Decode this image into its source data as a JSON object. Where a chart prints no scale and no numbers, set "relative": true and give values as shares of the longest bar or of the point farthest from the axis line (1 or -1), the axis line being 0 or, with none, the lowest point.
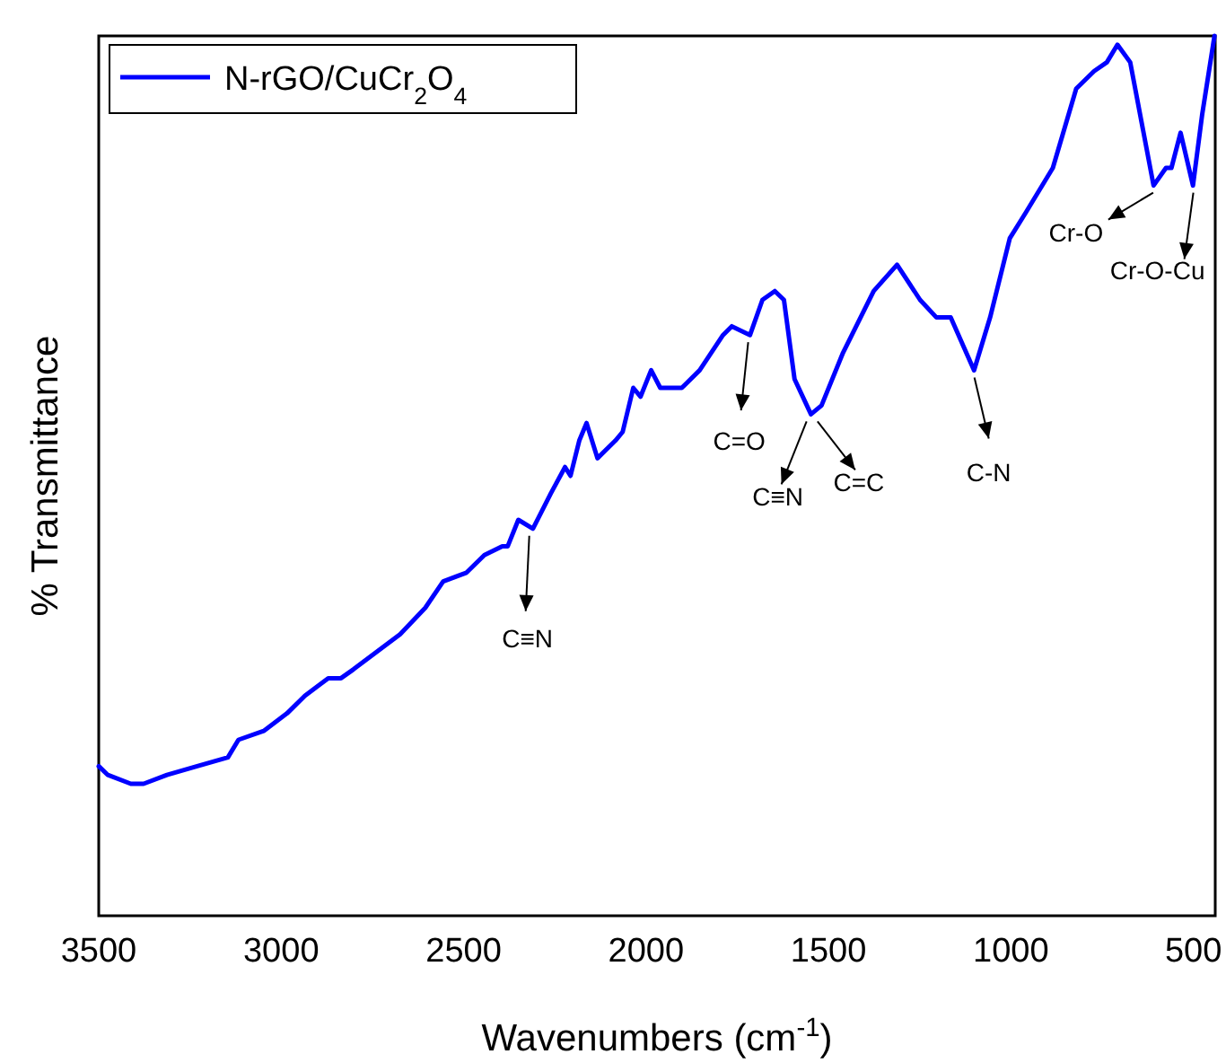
{
  "chart_data": {
    "type": "line",
    "relative": true,
    "xlabel": "Wavenumbers (cm$^{-1}$)",
    "ylabel": "% Transmittance",
    "xlim": [
      3500,
      440
    ],
    "xticks": [
      3500,
      3000,
      2500,
      2000,
      1500,
      1000,
      500
    ],
    "legend": "top left",
    "grid": false,
    "x": [
      3500,
      3475,
      3412,
      3377,
      3313,
      3230,
      3146,
      3117,
      3048,
      2984,
      2935,
      2871,
      2836,
      2802,
      2738,
      2674,
      2605,
      2556,
      2492,
      2443,
      2394,
      2379,
      2350,
      2310,
      2261,
      2222,
      2207,
      2183,
      2163,
      2133,
      2084,
      2064,
      2035,
      2015,
      1986,
      1961,
      1942,
      1902,
      1853,
      1789,
      1765,
      1715,
      1681,
      1647,
      1622,
      1593,
      1548,
      1519,
      1460,
      1376,
      1312,
      1249,
      1204,
      1165,
      1101,
      1057,
      1003,
      958,
      885,
      821,
      772,
      737,
      708,
      673,
      609,
      575,
      560,
      535,
      501,
      476,
      442
    ],
    "series": [
      {
        "name": "N-rGO/CuCr$_{2}$O$_{4}$",
        "color": "#0000ff",
        "values": [
          0.17,
          0.16,
          0.15,
          0.15,
          0.16,
          0.17,
          0.18,
          0.2,
          0.21,
          0.23,
          0.25,
          0.27,
          0.27,
          0.28,
          0.3,
          0.32,
          0.35,
          0.38,
          0.39,
          0.41,
          0.42,
          0.42,
          0.45,
          0.44,
          0.48,
          0.51,
          0.5,
          0.54,
          0.56,
          0.52,
          0.54,
          0.55,
          0.6,
          0.59,
          0.62,
          0.6,
          0.6,
          0.6,
          0.62,
          0.66,
          0.67,
          0.66,
          0.7,
          0.71,
          0.7,
          0.61,
          0.57,
          0.58,
          0.64,
          0.71,
          0.74,
          0.7,
          0.68,
          0.68,
          0.62,
          0.68,
          0.77,
          0.8,
          0.85,
          0.94,
          0.96,
          0.97,
          0.99,
          0.97,
          0.83,
          0.85,
          0.85,
          0.89,
          0.83,
          0.91,
          1.0
        ]
      }
    ],
    "annotations": [
      {
        "text": "C≡N",
        "x": 2320,
        "y": 0.44
      },
      {
        "text": "C=O",
        "x": 1720,
        "y": 0.66
      },
      {
        "text": "C≡N",
        "x": 1560,
        "y": 0.57
      },
      {
        "text": "C=C",
        "x": 1530,
        "y": 0.57
      },
      {
        "text": "C-N",
        "x": 1100,
        "y": 0.62
      },
      {
        "text": "Cr-O",
        "x": 610,
        "y": 0.83
      },
      {
        "text": "Cr-O-Cu",
        "x": 500,
        "y": 0.83
      }
    ]
  }
}
